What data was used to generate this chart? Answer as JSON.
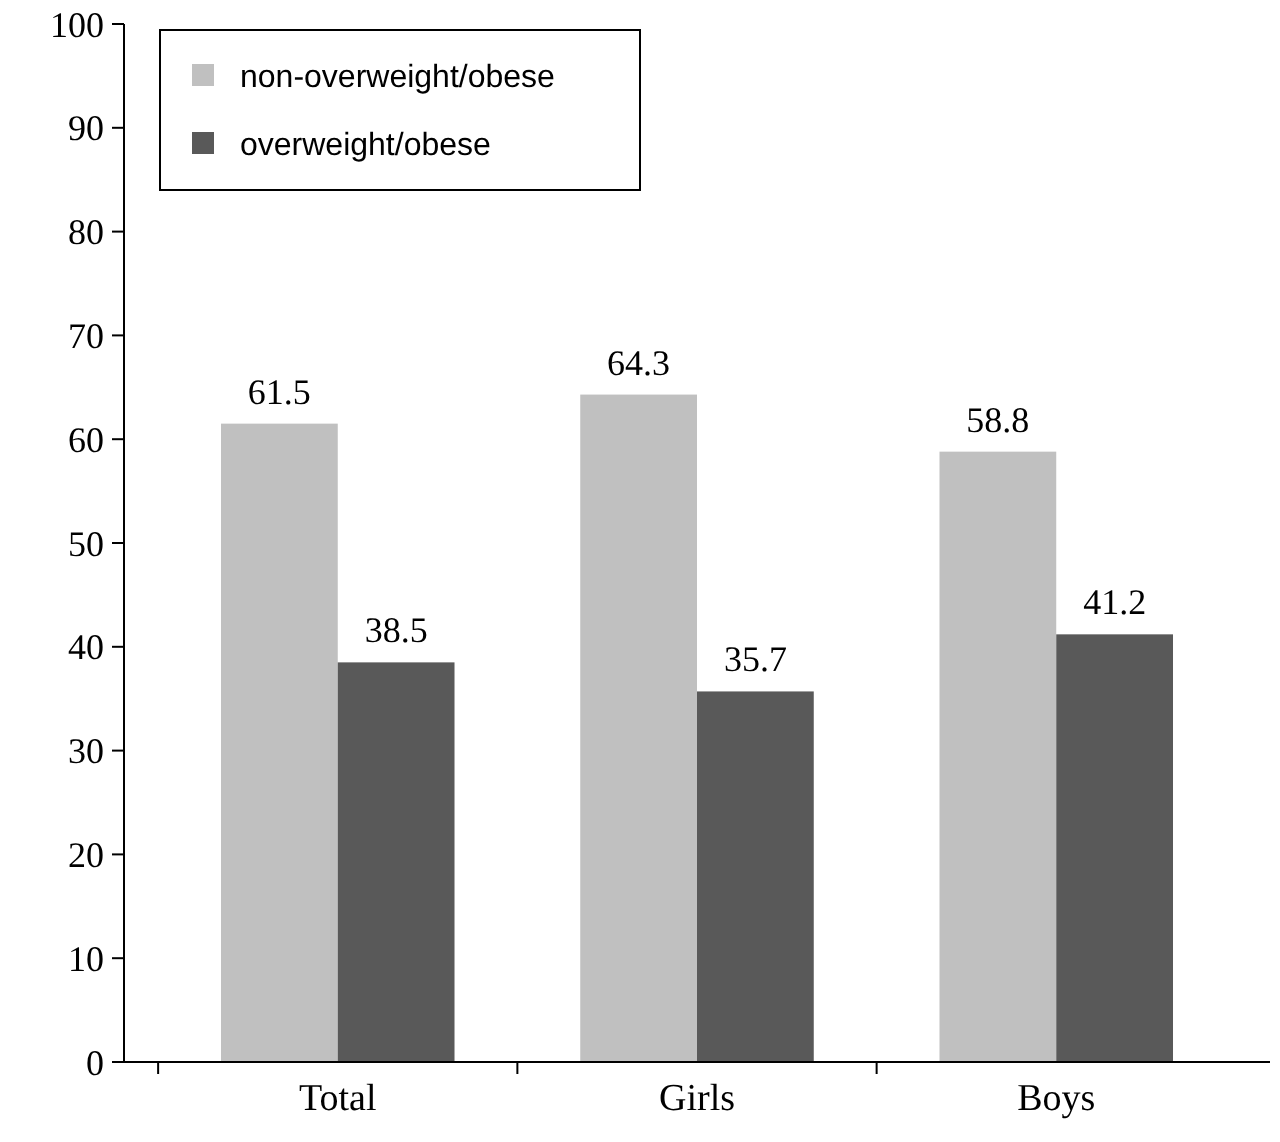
{
  "chart_data": {
    "type": "bar",
    "categories": [
      "Total",
      "Girls",
      "Boys"
    ],
    "series": [
      {
        "name": "non-overweight/obese",
        "color": "#c0c0c0",
        "values": [
          61.5,
          64.3,
          58.8
        ]
      },
      {
        "name": "overweight/obese",
        "color": "#595959",
        "values": [
          38.5,
          35.7,
          41.2
        ]
      }
    ],
    "ylim": [
      0,
      100
    ],
    "yticks": [
      0,
      10,
      20,
      30,
      40,
      50,
      60,
      70,
      80,
      90,
      100
    ],
    "data_labels": true,
    "legend": "top left",
    "grid": false
  }
}
